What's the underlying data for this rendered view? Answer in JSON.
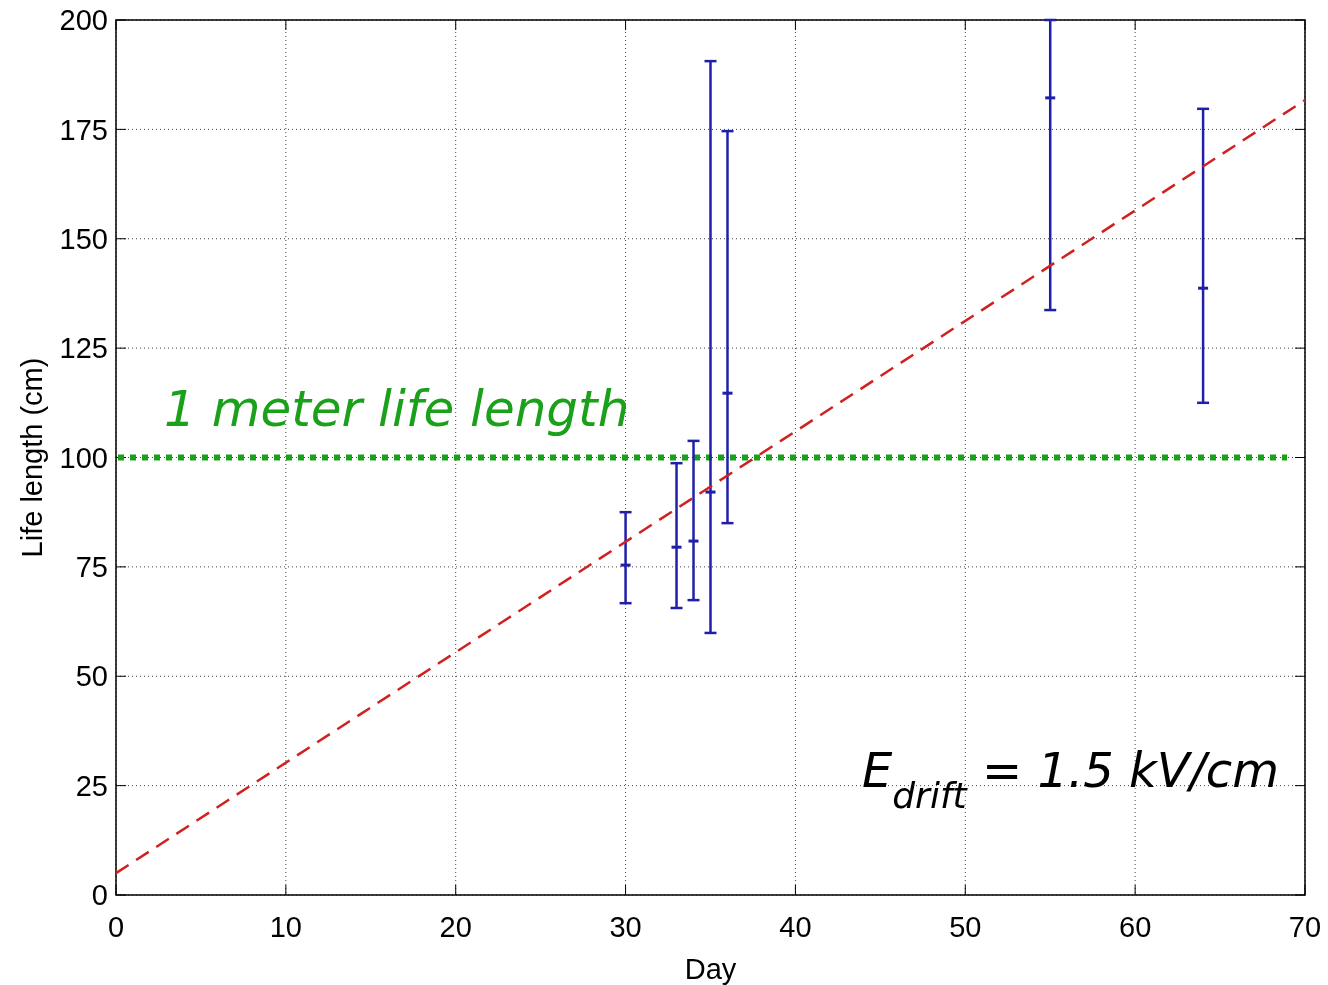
{
  "chart_data": {
    "type": "scatter",
    "xlabel": "Day",
    "ylabel": "Life length (cm)",
    "xlim": [
      0,
      70
    ],
    "xticks": [
      0,
      10,
      20,
      30,
      40,
      50,
      60,
      70
    ],
    "ylim": [
      0,
      200
    ],
    "yticks": [
      0,
      25,
      50,
      75,
      100,
      125,
      150,
      175,
      200
    ],
    "grid": true,
    "series": [
      {
        "color": "#1f1fa8",
        "x": [
          30,
          33,
          34,
          35,
          36,
          55,
          64
        ],
        "values": [
          75.4,
          79.5,
          80.9,
          92.1,
          114.7,
          182.2,
          138.7
        ],
        "errors": [
          [
            66.7,
            87.5
          ],
          [
            65.6,
            98.7
          ],
          [
            67.4,
            103.8
          ],
          [
            59.9,
            190.6
          ],
          [
            85,
            174.6
          ],
          [
            133.7,
            200
          ],
          [
            112.5,
            179.7
          ]
        ]
      },
      {
        "type": "line",
        "color": "#d02020",
        "line_style": "dashed",
        "x": [
          0,
          70
        ],
        "values": [
          5,
          181.7
        ]
      }
    ],
    "ref_lines": [
      {
        "axis": "y",
        "value": 100,
        "label": "1 meter life length",
        "color": "#1aa01a",
        "line_style": "dotted"
      }
    ],
    "annotations": [
      "E$_{drift}$ = 1.5 kV/cm"
    ]
  }
}
